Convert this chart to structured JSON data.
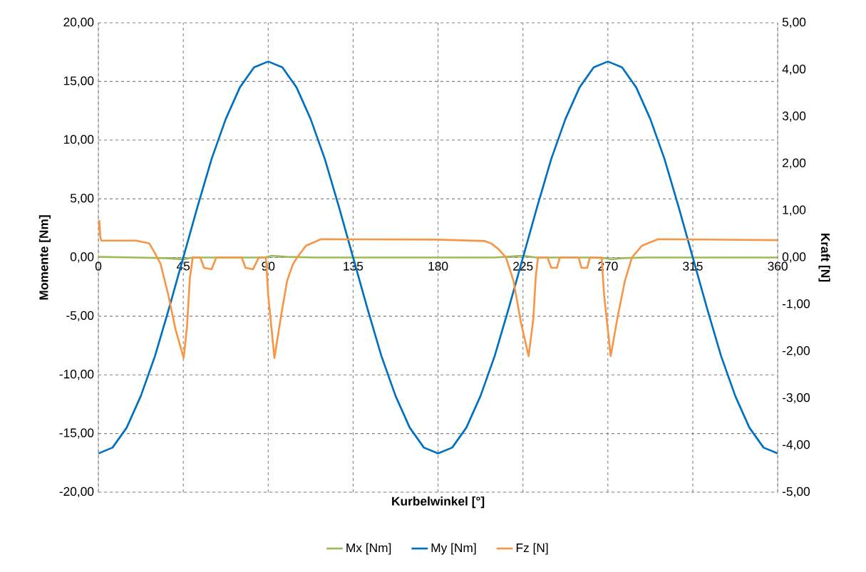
{
  "chart_data": {
    "type": "line",
    "xlabel": "Kurbelwinkel [°]",
    "ylabel": "Momente [Nm]",
    "y2label": "Kraft [N]",
    "xlim": [
      0,
      360
    ],
    "xticks": [
      0,
      45,
      90,
      135,
      180,
      225,
      270,
      315,
      360
    ],
    "ylim": [
      -20,
      20
    ],
    "yticks": [
      {
        "value": -20,
        "label": "-20,00"
      },
      {
        "value": -15,
        "label": "-15,00"
      },
      {
        "value": -10,
        "label": "-10,00"
      },
      {
        "value": -5,
        "label": "-5,00"
      },
      {
        "value": 0,
        "label": "0,00"
      },
      {
        "value": 5,
        "label": "5,00"
      },
      {
        "value": 10,
        "label": "10,00"
      },
      {
        "value": 15,
        "label": "15,00"
      },
      {
        "value": 20,
        "label": "20,00"
      }
    ],
    "y2lim": [
      -5,
      5
    ],
    "y2ticks": [
      {
        "value": -5,
        "label": "-5,00"
      },
      {
        "value": -4,
        "label": "-4,00"
      },
      {
        "value": -3,
        "label": "-3,00"
      },
      {
        "value": -2,
        "label": "-2,00"
      },
      {
        "value": -1,
        "label": "-1,00"
      },
      {
        "value": 0,
        "label": "0,00"
      },
      {
        "value": 1,
        "label": "1,00"
      },
      {
        "value": 2,
        "label": "2,00"
      },
      {
        "value": 3,
        "label": "3,00"
      },
      {
        "value": 4,
        "label": "4,00"
      },
      {
        "value": 5,
        "label": "5,00"
      }
    ],
    "grid": true,
    "legend": "bottom",
    "series": [
      {
        "name": "Mx [Nm]",
        "color": "#9bbb59",
        "x": [
          0,
          20,
          35,
          45,
          50,
          80,
          88,
          92,
          100,
          115,
          180,
          210,
          220,
          225,
          232,
          260,
          268,
          272,
          278,
          290,
          360
        ],
        "values": [
          0.05,
          0.0,
          -0.05,
          -0.15,
          0.0,
          0.0,
          0.0,
          0.15,
          0.05,
          0.0,
          0.0,
          0.0,
          0.1,
          0.15,
          0.0,
          0.0,
          -0.05,
          -0.15,
          -0.05,
          0.0,
          0.0
        ]
      },
      {
        "name": "My [Nm]",
        "color": "#0070c0",
        "x": [
          0,
          7.5,
          15,
          22.5,
          30,
          37.5,
          45,
          52.5,
          60,
          67.5,
          75,
          82.5,
          90,
          97.5,
          105,
          112.5,
          120,
          127.5,
          135,
          142.5,
          150,
          157.5,
          165,
          172.5,
          180,
          187.5,
          195,
          202.5,
          210,
          217.5,
          225,
          232.5,
          240,
          247.5,
          255,
          262.5,
          270,
          277.5,
          285,
          292.5,
          300,
          307.5,
          315,
          322.5,
          330,
          337.5,
          345,
          352.5,
          360
        ],
        "values": [
          -16.7,
          -16.2,
          -14.5,
          -11.8,
          -8.4,
          -4.3,
          0.0,
          4.3,
          8.4,
          11.8,
          14.5,
          16.2,
          16.7,
          16.2,
          14.5,
          11.8,
          8.4,
          4.3,
          0.0,
          -4.3,
          -8.4,
          -11.8,
          -14.5,
          -16.2,
          -16.7,
          -16.2,
          -14.5,
          -11.8,
          -8.4,
          -4.3,
          0.0,
          4.3,
          8.4,
          11.8,
          14.5,
          16.2,
          16.7,
          16.2,
          14.5,
          11.8,
          8.4,
          4.3,
          0.0,
          -4.3,
          -8.4,
          -11.8,
          -14.5,
          -16.2,
          -16.7
        ]
      },
      {
        "name": "Fz [N]",
        "color": "#f79646",
        "axis": "y2",
        "x": [
          0,
          0.5,
          1,
          1.5,
          2,
          20,
          27,
          30,
          33,
          37,
          41,
          45.2,
          47,
          48.5,
          50,
          54,
          56,
          60,
          62.5,
          76,
          78,
          82,
          85,
          88.8,
          90,
          93.3,
          97,
          100,
          103,
          105.3,
          110,
          118,
          180,
          205,
          208.5,
          212,
          216,
          220,
          224,
          228,
          230.5,
          231.8,
          233,
          238,
          240,
          243,
          244.5,
          254.5,
          256,
          259,
          260.5,
          266.7,
          268,
          271.5,
          275,
          279,
          282.8,
          288,
          296.6,
          360
        ],
        "values": [
          0.6,
          0.78,
          0.45,
          0.36,
          0.36,
          0.36,
          0.3,
          0.09,
          -0.14,
          -0.79,
          -1.55,
          -2.14,
          -1.46,
          -0.44,
          0.0,
          0.0,
          -0.22,
          -0.25,
          0.0,
          0.0,
          -0.22,
          -0.25,
          0.0,
          0.0,
          -0.8,
          -2.14,
          -1.2,
          -0.5,
          -0.15,
          0.0,
          0.25,
          0.39,
          0.38,
          0.35,
          0.29,
          0.18,
          0.0,
          -0.5,
          -1.4,
          -2.1,
          -1.3,
          -0.4,
          0.0,
          0.0,
          -0.22,
          -0.22,
          0.0,
          0.0,
          -0.22,
          -0.22,
          0.0,
          0.0,
          -0.8,
          -2.1,
          -1.3,
          -0.5,
          0.0,
          0.25,
          0.39,
          0.37
        ]
      }
    ]
  }
}
